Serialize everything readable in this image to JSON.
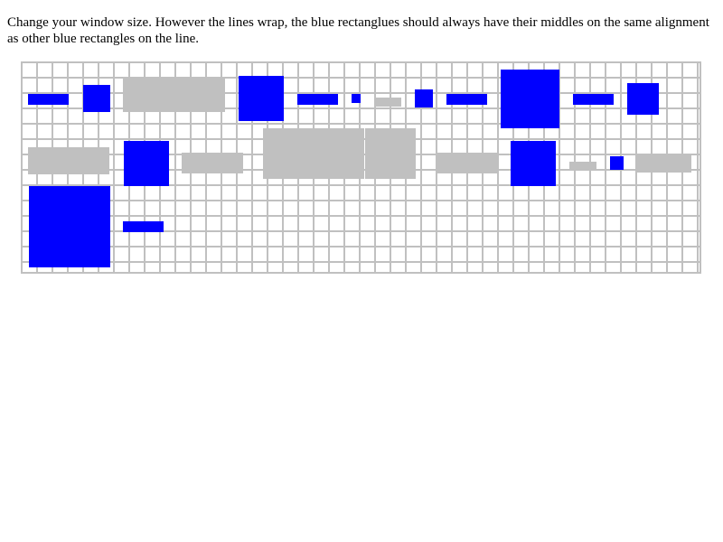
{
  "page": {
    "instructions": "Change your window size. However the lines wrap, the blue rectanglues should always have their middles on the same alignment as other blue rectangles on the line."
  },
  "colors": {
    "blue_box": "#0000ff",
    "gray_box": "#c0c0c0",
    "grid_line": "#c0c0c0",
    "background": "#ffffff"
  }
}
